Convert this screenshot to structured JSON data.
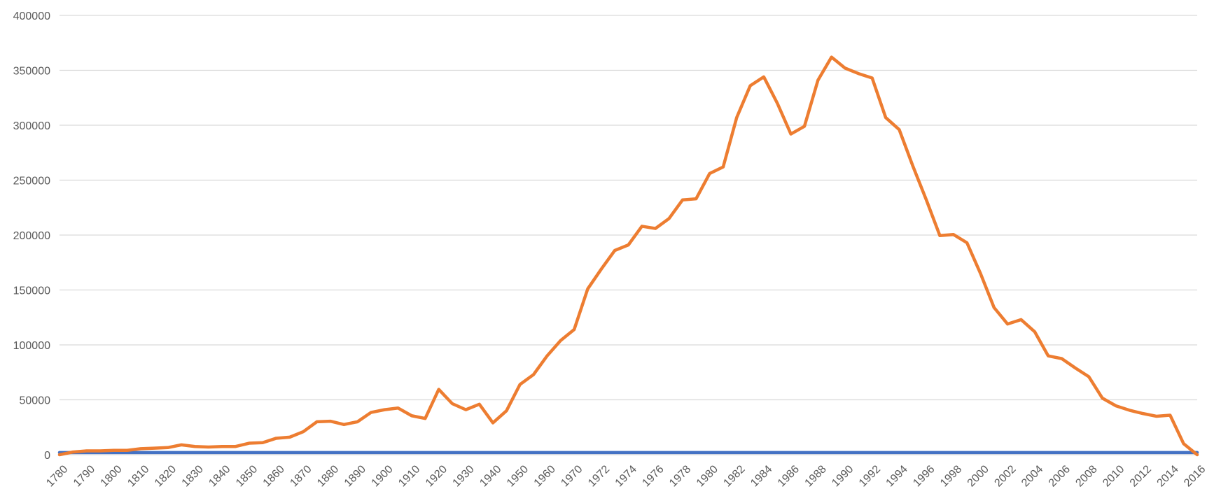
{
  "chart_data": {
    "type": "line",
    "title": "",
    "xlabel": "",
    "ylabel": "",
    "ylim": [
      0,
      400000
    ],
    "y_ticks": [
      0,
      50000,
      100000,
      150000,
      200000,
      250000,
      300000,
      350000,
      400000
    ],
    "grid": true,
    "legend": "none",
    "x": [
      "1780",
      "1785",
      "1790",
      "1795",
      "1800",
      "1805",
      "1810",
      "1815",
      "1820",
      "1825",
      "1830",
      "1835",
      "1840",
      "1845",
      "1850",
      "1855",
      "1860",
      "1865",
      "1870",
      "1875",
      "1880",
      "1885",
      "1890",
      "1895",
      "1900",
      "1905",
      "1910",
      "1915",
      "1920",
      "1925",
      "1930",
      "1935",
      "1940",
      "1945",
      "1950",
      "1955",
      "1960",
      "1965",
      "1970",
      "1971",
      "1972",
      "1973",
      "1974",
      "1975",
      "1976",
      "1977",
      "1978",
      "1979",
      "1980",
      "1981",
      "1982",
      "1983",
      "1984",
      "1985",
      "1986",
      "1987",
      "1988",
      "1989",
      "1990",
      "1991",
      "1992",
      "1993",
      "1994",
      "1995",
      "1996",
      "1997",
      "1998",
      "1999",
      "2000",
      "2001",
      "2002",
      "2003",
      "2004",
      "2005",
      "2006",
      "2007",
      "2008",
      "2009",
      "2010",
      "2011",
      "2012",
      "2013",
      "2014",
      "2015",
      "2016"
    ],
    "x_tick_labels": [
      "1780",
      "1790",
      "1800",
      "1810",
      "1820",
      "1830",
      "1840",
      "1850",
      "1860",
      "1870",
      "1880",
      "1890",
      "1900",
      "1910",
      "1920",
      "1930",
      "1940",
      "1950",
      "1960",
      "1970",
      "1972",
      "1974",
      "1976",
      "1978",
      "1980",
      "1982",
      "1984",
      "1986",
      "1988",
      "1990",
      "1992",
      "1994",
      "1996",
      "1998",
      "2000",
      "2002",
      "2004",
      "2006",
      "2008",
      "2010",
      "2012",
      "2014",
      "2016"
    ],
    "series": [
      {
        "color": "#4472C4",
        "values": [
          2000,
          2000,
          2000,
          2000,
          2000,
          2000,
          2000,
          2000,
          2000,
          2000,
          2000,
          2000,
          2000,
          2000,
          2000,
          2000,
          2000,
          2000,
          2000,
          2000,
          2000,
          2000,
          2000,
          2000,
          2000,
          2000,
          2000,
          2000,
          2000,
          2000,
          2000,
          2000,
          2000,
          2000,
          2000,
          2000,
          2000,
          2000,
          2000,
          2000,
          2000,
          2000,
          2000,
          2000,
          2000,
          2000,
          2000,
          2000,
          2000,
          2000,
          2000,
          2000,
          2000,
          2000,
          2000,
          2000,
          2000,
          2000,
          2000,
          2000,
          2000,
          2000,
          2000,
          2000,
          2000,
          2000,
          2000,
          2000,
          2000,
          2000,
          2000,
          2000,
          2000,
          2000,
          2000,
          2000,
          2000,
          2000,
          2000,
          2000,
          2000,
          2000,
          2000,
          2000,
          2000
        ]
      },
      {
        "color": "#ED7D31",
        "values": [
          0,
          2500,
          3500,
          3500,
          4000,
          4000,
          5500,
          6000,
          6500,
          9000,
          7500,
          7000,
          7500,
          7500,
          10500,
          11000,
          15000,
          16000,
          21000,
          30000,
          30500,
          27500,
          30000,
          38500,
          41000,
          42500,
          35500,
          33000,
          59500,
          46500,
          41000,
          46000,
          29000,
          40000,
          64000,
          73000,
          90000,
          104000,
          114000,
          151000,
          169000,
          186000,
          191000,
          208000,
          206000,
          215000,
          232000,
          233000,
          256000,
          262000,
          307000,
          336000,
          344000,
          320000,
          292000,
          299000,
          341000,
          362000,
          352000,
          347000,
          343000,
          307000,
          296000,
          263000,
          232000,
          199500,
          200500,
          193000,
          165000,
          134000,
          119000,
          123000,
          112000,
          90000,
          87500,
          79000,
          71000,
          51500,
          44500,
          40500,
          37500,
          35000,
          36000,
          10000,
          0
        ]
      }
    ]
  }
}
